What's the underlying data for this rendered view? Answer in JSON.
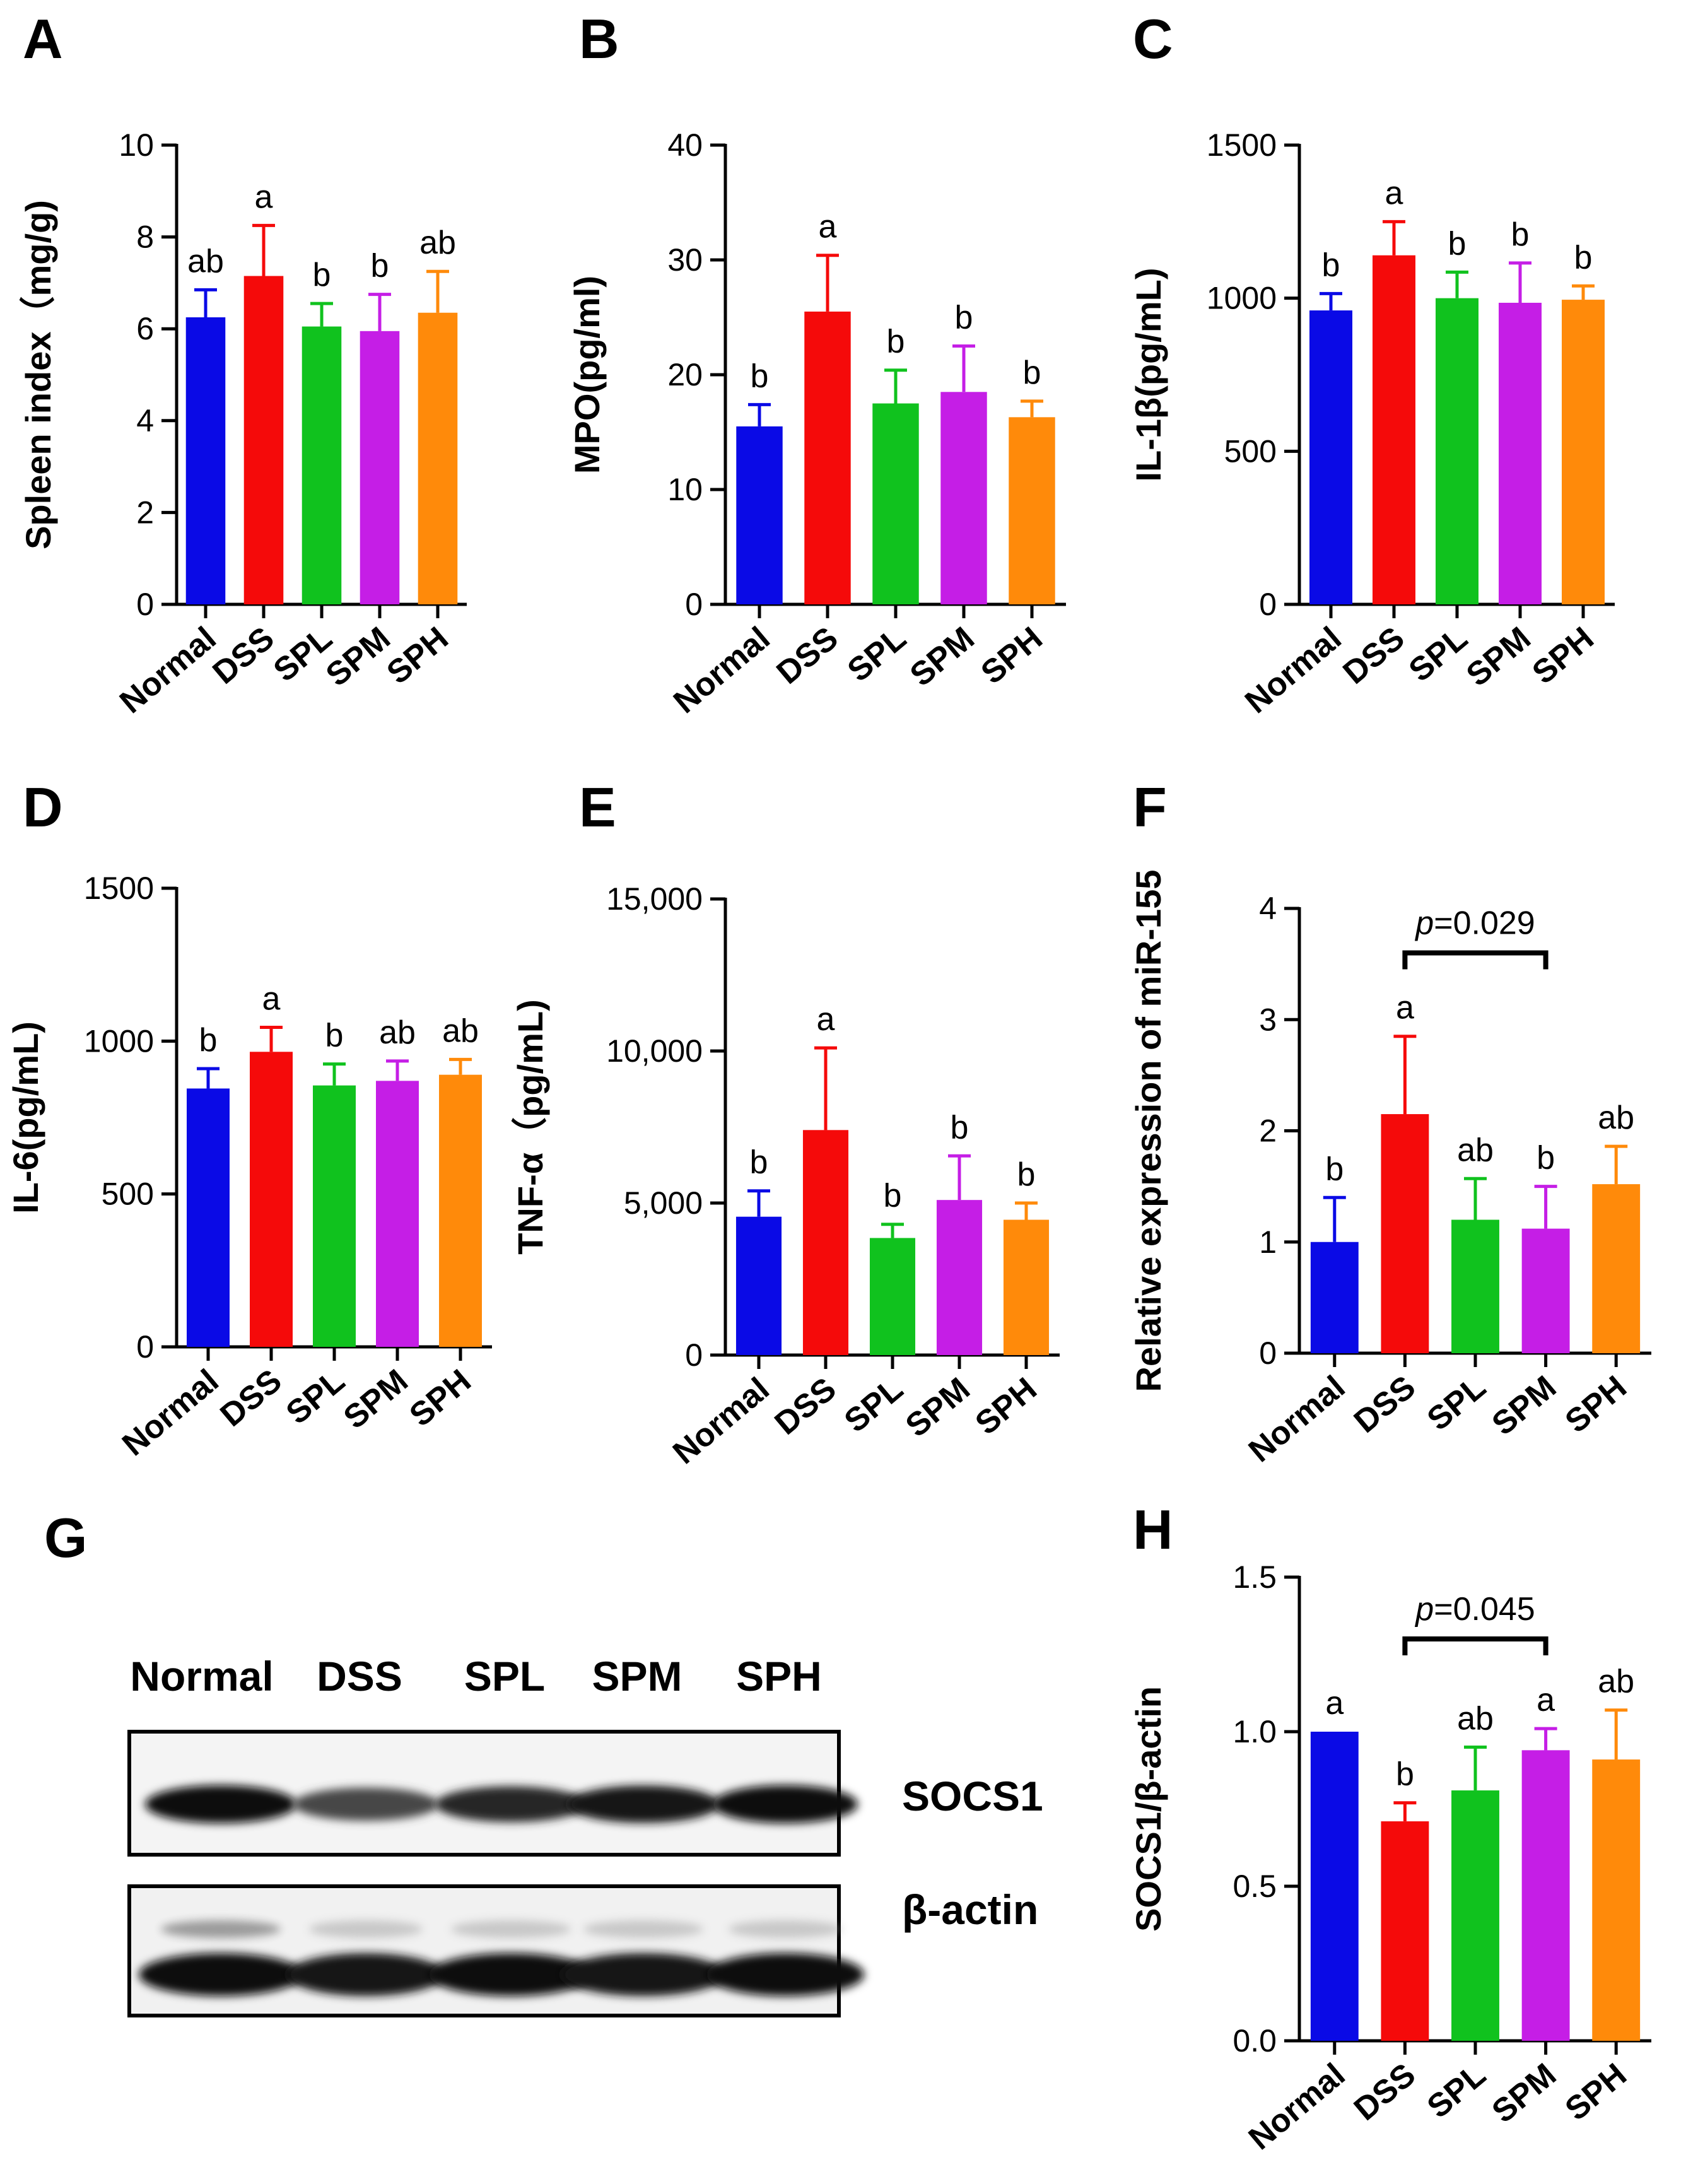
{
  "figure": {
    "colors": {
      "Normal": "#0a0ae6",
      "DSS": "#f50a0a",
      "SPL": "#10c21e",
      "SPM": "#c51ee6",
      "SPH": "#ff8a0a"
    }
  },
  "chart_data": [
    {
      "panel": "A",
      "type": "bar",
      "categories": [
        "Normal",
        "DSS",
        "SPL",
        "SPM",
        "SPH"
      ],
      "values": [
        6.25,
        7.15,
        6.05,
        5.95,
        6.35
      ],
      "errors": [
        0.6,
        1.1,
        0.5,
        0.8,
        0.9
      ],
      "letters": [
        "ab",
        "a",
        "b",
        "b",
        "ab"
      ],
      "ylabel": "Spleen index（mg/g)",
      "ylim": [
        0,
        10
      ],
      "yticks": [
        0,
        2,
        4,
        6,
        8,
        10
      ],
      "ytick_labels": [
        "0",
        "2",
        "4",
        "6",
        "8",
        "10"
      ]
    },
    {
      "panel": "B",
      "type": "bar",
      "categories": [
        "Normal",
        "DSS",
        "SPL",
        "SPM",
        "SPH"
      ],
      "values": [
        15.5,
        25.5,
        17.5,
        18.5,
        16.3
      ],
      "errors": [
        1.9,
        4.9,
        2.9,
        4.0,
        1.4
      ],
      "letters": [
        "b",
        "a",
        "b",
        "b",
        "b"
      ],
      "ylabel": "MPO(pg/ml)",
      "ylim": [
        0,
        40
      ],
      "yticks": [
        0,
        10,
        20,
        30,
        40
      ],
      "ytick_labels": [
        "0",
        "10",
        "20",
        "30",
        "40"
      ]
    },
    {
      "panel": "C",
      "type": "bar",
      "categories": [
        "Normal",
        "DSS",
        "SPL",
        "SPM",
        "SPH"
      ],
      "values": [
        960,
        1140,
        1000,
        985,
        995
      ],
      "errors": [
        55,
        110,
        85,
        130,
        45
      ],
      "letters": [
        "b",
        "a",
        "b",
        "b",
        "b"
      ],
      "ylabel": "IL-1β(pg/mL)",
      "ylim": [
        0,
        1500
      ],
      "yticks": [
        0,
        500,
        1000,
        1500
      ],
      "ytick_labels": [
        "0",
        "500",
        "1000",
        "1500"
      ]
    },
    {
      "panel": "D",
      "type": "bar",
      "categories": [
        "Normal",
        "DSS",
        "SPL",
        "SPM",
        "SPH"
      ],
      "values": [
        845,
        965,
        855,
        870,
        890
      ],
      "errors": [
        65,
        80,
        70,
        65,
        50
      ],
      "letters": [
        "b",
        "a",
        "b",
        "ab",
        "ab"
      ],
      "ylabel": "IL-6(pg/mL)",
      "ylim": [
        0,
        1500
      ],
      "yticks": [
        0,
        500,
        1000,
        1500
      ],
      "ytick_labels": [
        "0",
        "500",
        "1000",
        "1500"
      ]
    },
    {
      "panel": "E",
      "type": "bar",
      "categories": [
        "Normal",
        "DSS",
        "SPL",
        "SPM",
        "SPH"
      ],
      "values": [
        4550,
        7400,
        3850,
        5100,
        4450
      ],
      "errors": [
        850,
        2700,
        450,
        1450,
        550
      ],
      "letters": [
        "b",
        "a",
        "b",
        "b",
        "b"
      ],
      "ylabel": "TNF-α（pg/mL)",
      "ylim": [
        0,
        15000
      ],
      "yticks": [
        0,
        5000,
        10000,
        15000
      ],
      "ytick_labels": [
        "0",
        "5,000",
        "10,000",
        "15,000"
      ]
    },
    {
      "panel": "F",
      "type": "bar",
      "categories": [
        "Normal",
        "DSS",
        "SPL",
        "SPM",
        "SPH"
      ],
      "values": [
        1.0,
        2.15,
        1.2,
        1.12,
        1.52
      ],
      "errors": [
        0.4,
        0.7,
        0.37,
        0.38,
        0.34
      ],
      "letters": [
        "b",
        "a",
        "ab",
        "b",
        "ab"
      ],
      "ylabel": "Relative expression of miR-155",
      "ylim": [
        0,
        4
      ],
      "yticks": [
        0,
        1,
        2,
        3,
        4
      ],
      "ytick_labels": [
        "0",
        "1",
        "2",
        "3",
        "4"
      ],
      "comparison": {
        "from": "DSS",
        "to": "SPM",
        "p_italic": "p",
        "p_text": "=0.029",
        "y": 3.6
      }
    },
    {
      "panel": "H",
      "type": "bar",
      "categories": [
        "Normal",
        "DSS",
        "SPL",
        "SPM",
        "SPH"
      ],
      "values": [
        1.0,
        0.71,
        0.81,
        0.94,
        0.91
      ],
      "errors": [
        0.0,
        0.06,
        0.14,
        0.07,
        0.16
      ],
      "letters": [
        "a",
        "b",
        "ab",
        "a",
        "ab"
      ],
      "ylabel": "SOCS1/β-actin",
      "ylim": [
        0,
        1.5
      ],
      "yticks": [
        0,
        0.5,
        1.0,
        1.5
      ],
      "ytick_labels": [
        "0.0",
        "0.5",
        "1.0",
        "1.5"
      ],
      "comparison": {
        "from": "DSS",
        "to": "SPM",
        "p_italic": "p",
        "p_text": "=0.045",
        "y": 1.3
      }
    }
  ],
  "blot": {
    "panel": "G",
    "lanes": [
      "Normal",
      "DSS",
      "SPL",
      "SPM",
      "SPH"
    ],
    "proteins": [
      "SOCS1",
      "β-actin"
    ],
    "socs1_intensity": [
      0.95,
      0.72,
      0.85,
      0.92,
      0.95
    ],
    "actin_intensity": [
      0.95,
      0.92,
      0.94,
      0.93,
      0.95
    ]
  }
}
